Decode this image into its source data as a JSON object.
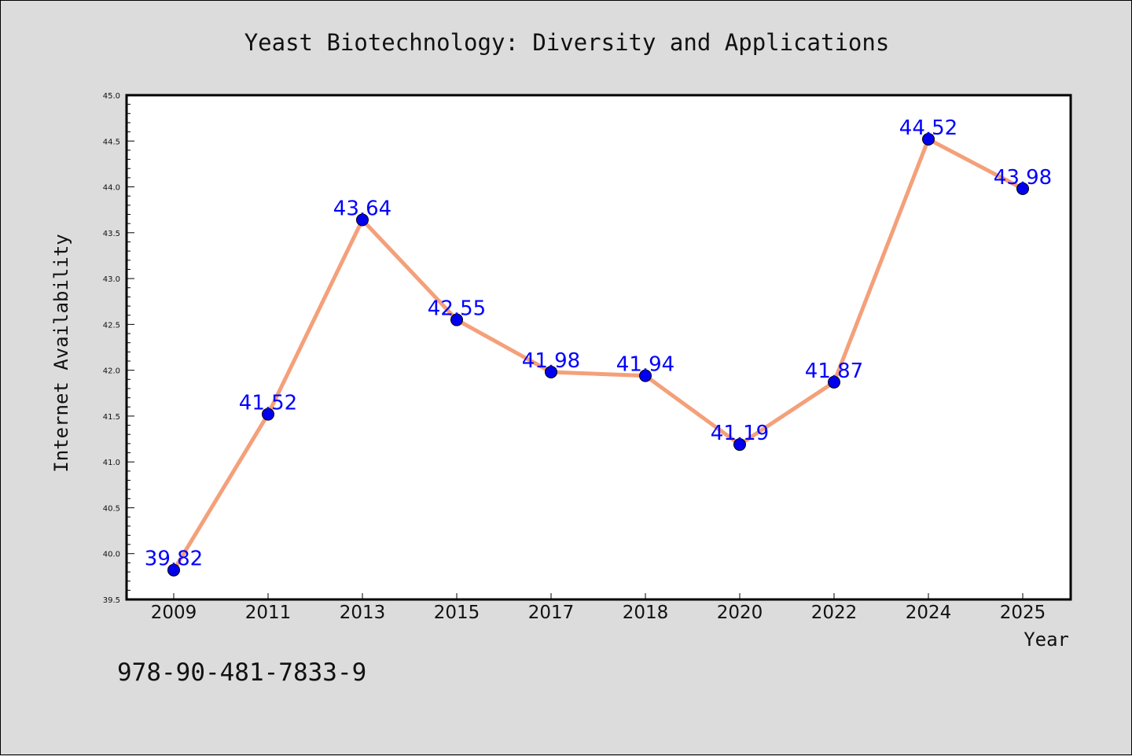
{
  "chart_data": {
    "type": "line",
    "title": "Yeast Biotechnology: Diversity and Applications",
    "xlabel": "Year",
    "ylabel": "Internet Availability",
    "categories": [
      "2009",
      "2011",
      "2013",
      "2015",
      "2017",
      "2018",
      "2020",
      "2022",
      "2024",
      "2025"
    ],
    "values": [
      39.82,
      41.52,
      43.64,
      42.55,
      41.98,
      41.94,
      41.19,
      41.87,
      44.52,
      43.98
    ],
    "data_labels": [
      "39.82",
      "41.52",
      "43.64",
      "42.55",
      "41.98",
      "41.94",
      "41.19",
      "41.87",
      "44.52",
      "43.98"
    ],
    "ylim": [
      39.5,
      45.0
    ],
    "yticks": [
      "39.5",
      "40.0",
      "40.5",
      "41.0",
      "41.5",
      "42.0",
      "42.5",
      "43.0",
      "43.5",
      "44.0",
      "44.5",
      "45.0"
    ],
    "grid": false,
    "legend": "none",
    "colors": {
      "line": "#f4a07a",
      "marker": "#0000ee",
      "data_label": "#0000ff",
      "plot_background": "#ffffff",
      "figure_background": "#dcdcdc"
    }
  },
  "annotation": {
    "isbn": "978-90-481-7833-9"
  }
}
